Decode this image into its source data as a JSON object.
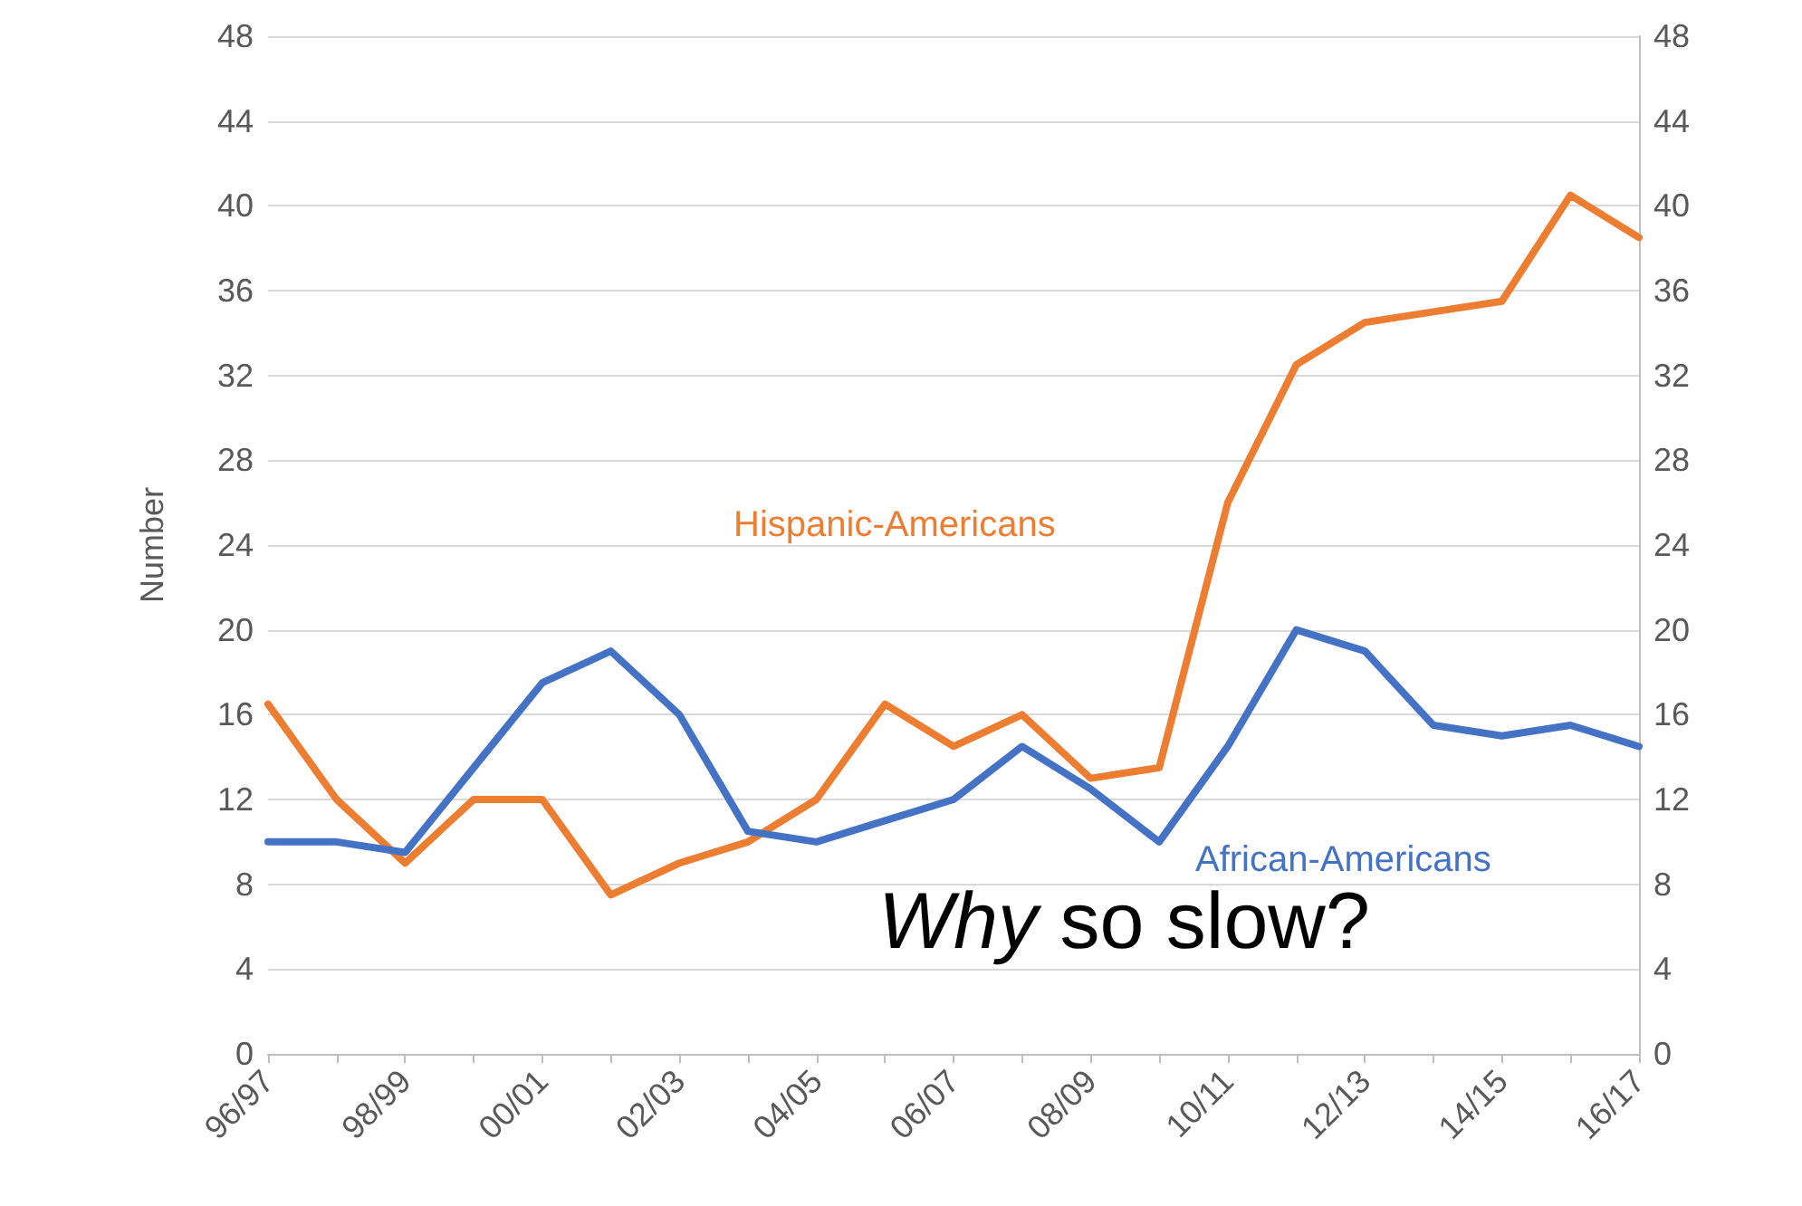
{
  "chart_data": {
    "type": "line",
    "ylabel": "Number",
    "categories": [
      "96/97",
      null,
      "98/99",
      null,
      "00/01",
      null,
      "02/03",
      null,
      "04/05",
      null,
      "06/07",
      null,
      "08/09",
      null,
      "10/11",
      null,
      "12/13",
      null,
      "14/15",
      null,
      "16/17"
    ],
    "series": [
      {
        "name": "Hispanic-Americans",
        "color": "#ed7d31",
        "values": [
          16.5,
          12,
          9,
          12,
          12,
          7.5,
          9,
          10,
          12,
          16.5,
          14.5,
          16,
          13,
          13.5,
          26,
          32.5,
          34.5,
          35,
          35.5,
          40.5,
          38.5
        ]
      },
      {
        "name": "African-Americans",
        "color": "#4472c4",
        "values": [
          10,
          10,
          9.5,
          13.5,
          17.5,
          19,
          16,
          10.5,
          10,
          11,
          12,
          14.5,
          12.5,
          10,
          14.5,
          20,
          19,
          15.5,
          15,
          15.5,
          14.5
        ]
      }
    ],
    "ylim": [
      0,
      48
    ],
    "yticks": [
      0,
      4,
      8,
      12,
      16,
      20,
      24,
      28,
      32,
      36,
      40,
      44,
      48
    ],
    "y2lim": [
      0,
      48
    ],
    "y2ticks": [
      0,
      4,
      8,
      12,
      16,
      20,
      24,
      28,
      32,
      36,
      40,
      44,
      48
    ],
    "grid": "y",
    "legend": false,
    "marker": "none",
    "line_style": "solid",
    "annotations": [
      "Why so slow?"
    ]
  }
}
